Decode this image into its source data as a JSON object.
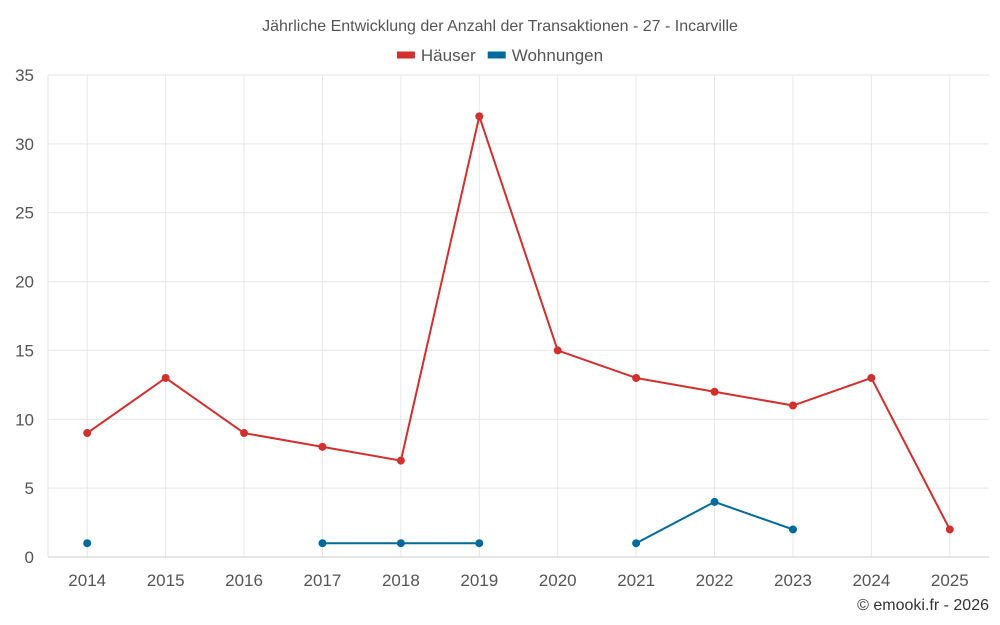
{
  "chart_data": {
    "type": "line",
    "title": "Jährliche Entwicklung der Anzahl der Transaktionen - 27 - Incarville",
    "categories": [
      "2014",
      "2015",
      "2016",
      "2017",
      "2018",
      "2019",
      "2020",
      "2021",
      "2022",
      "2023",
      "2024",
      "2025"
    ],
    "series": [
      {
        "name": "Häuser",
        "color": "#d32f2f",
        "values": [
          9,
          13,
          9,
          8,
          7,
          32,
          15,
          13,
          12,
          11,
          13,
          2
        ]
      },
      {
        "name": "Wohnungen",
        "color": "#01699c",
        "values": [
          1,
          null,
          null,
          1,
          1,
          1,
          null,
          1,
          4,
          2,
          null,
          null
        ]
      }
    ],
    "ylim": [
      0,
      35
    ],
    "yticks": [
      0,
      5,
      10,
      15,
      20,
      25,
      30,
      35
    ],
    "grid": true,
    "legend_position": "top-center",
    "credit": "© emooki.fr - 2026"
  }
}
